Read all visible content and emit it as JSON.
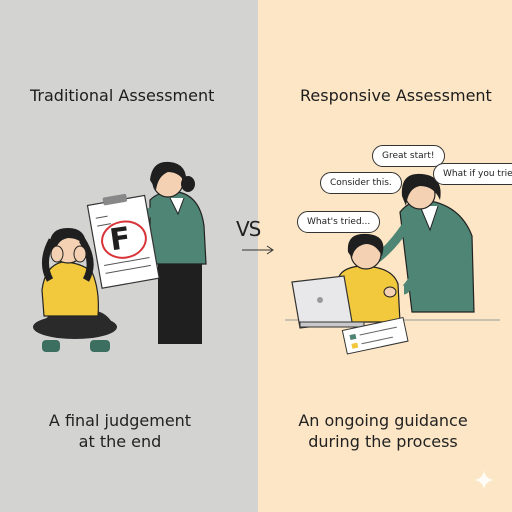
{
  "left": {
    "heading": "Traditional Assessment",
    "caption_line1": "A final judgement",
    "caption_line2": "at the end",
    "paper_grade": "F",
    "background": "#d3d3d2"
  },
  "center": {
    "vs_label": "VS"
  },
  "right": {
    "heading": "Responsive Assessment",
    "caption_line1": "An ongoing guidance",
    "caption_line2": "during the process",
    "background": "#fce6c5",
    "bubbles": [
      "Great start!",
      "Consider this.",
      "What if you tried…",
      "What's tried..."
    ]
  },
  "colors": {
    "teacher_jacket": "#4f8574",
    "student_sweater": "#f2c83c",
    "grade_circle": "#d9343a"
  },
  "icons": [
    "sad-student-figure",
    "teacher-with-paper-figure",
    "laptop-student-figure",
    "helping-teacher-figure",
    "sparkle-icon",
    "arrow-right-icon"
  ]
}
